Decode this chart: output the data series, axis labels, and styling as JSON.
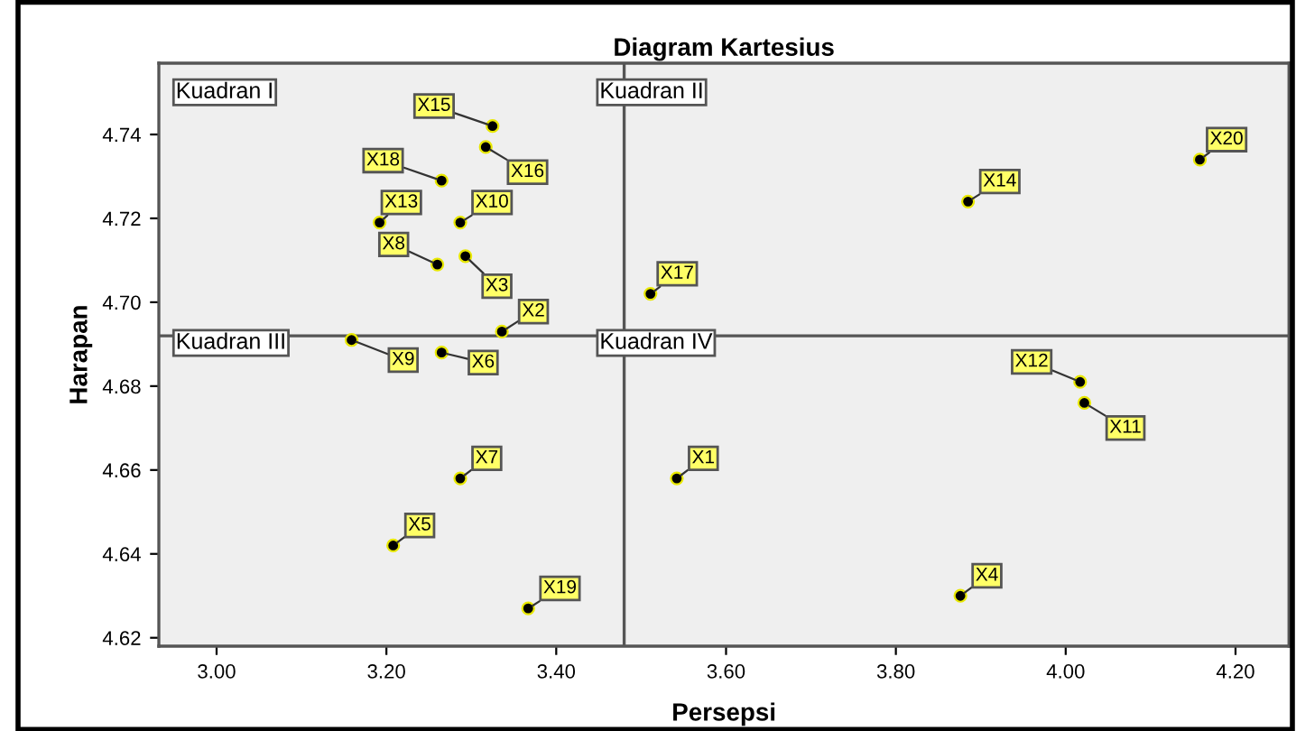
{
  "chart_data": {
    "type": "scatter",
    "title": "Diagram Kartesius",
    "xlabel": "Persepsi",
    "ylabel": "Harapan",
    "x": [
      3.542,
      3.336,
      3.293,
      3.876,
      3.208,
      3.265,
      3.287,
      3.26,
      3.159,
      3.287,
      4.022,
      4.017,
      3.192,
      3.885,
      3.325,
      3.317,
      3.511,
      3.265,
      3.367,
      4.158
    ],
    "values": [
      4.658,
      4.693,
      4.711,
      4.63,
      4.642,
      4.688,
      4.658,
      4.709,
      4.691,
      4.719,
      4.676,
      4.681,
      4.719,
      4.724,
      4.742,
      4.737,
      4.702,
      4.729,
      4.627,
      4.734
    ],
    "value_labels": [
      "X1",
      "X2",
      "X3",
      "X4",
      "X5",
      "X6",
      "X7",
      "X8",
      "X9",
      "X10",
      "X11",
      "X12",
      "X13",
      "X14",
      "X15",
      "X16",
      "X17",
      "X18",
      "X19",
      "X20"
    ],
    "color": "#000000",
    "marker": "circle",
    "xlim": [
      2.932,
      4.263
    ],
    "ylim": [
      4.618,
      4.757
    ],
    "xticks": [
      {
        "value": 3.0,
        "label": "3.00"
      },
      {
        "value": 3.2,
        "label": "3.20"
      },
      {
        "value": 3.4,
        "label": "3.40"
      },
      {
        "value": 3.6,
        "label": "3.60"
      },
      {
        "value": 3.8,
        "label": "3.80"
      },
      {
        "value": 4.0,
        "label": "4.00"
      },
      {
        "value": 4.2,
        "label": "4.20"
      }
    ],
    "yticks": [
      {
        "value": 4.62,
        "label": "4.62"
      },
      {
        "value": 4.64,
        "label": "4.64"
      },
      {
        "value": 4.66,
        "label": "4.66"
      },
      {
        "value": 4.68,
        "label": "4.68"
      },
      {
        "value": 4.7,
        "label": "4.70"
      },
      {
        "value": 4.72,
        "label": "4.72"
      },
      {
        "value": 4.74,
        "label": "4.74"
      }
    ],
    "ref_lines": [
      {
        "axis": "x",
        "value": 3.48,
        "color": "#555555"
      },
      {
        "axis": "y",
        "value": 4.692,
        "color": "#555555"
      }
    ],
    "annotations": [
      "Kuadran I",
      "Kuadran II",
      "Kuadran III",
      "Kuadran IV"
    ],
    "grid": false,
    "legend": false
  }
}
